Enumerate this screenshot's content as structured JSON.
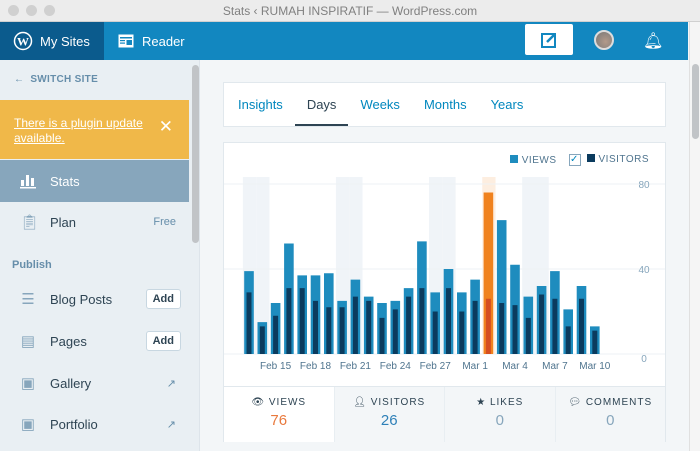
{
  "window": {
    "title": "Stats ‹ RUMAH INSPIRATIF — WordPress.com"
  },
  "masterbar": {
    "my_sites": "My Sites",
    "reader": "Reader",
    "icons": [
      "wordpress-icon",
      "reader-icon",
      "write-icon",
      "avatar",
      "notifications-icon"
    ]
  },
  "sidebar": {
    "switch_site": "SWITCH SITE",
    "notice": "There is a plugin update available.",
    "stats": "Stats",
    "plan": {
      "label": "Plan",
      "badge": "Free"
    },
    "publish_heading": "Publish",
    "items": [
      {
        "label": "Blog Posts",
        "action": "Add"
      },
      {
        "label": "Pages",
        "action": "Add"
      },
      {
        "label": "Gallery"
      },
      {
        "label": "Portfolio"
      }
    ]
  },
  "tabs": [
    "Insights",
    "Days",
    "Weeks",
    "Months",
    "Years"
  ],
  "active_tab": "Days",
  "legend": {
    "views": "VIEWS",
    "visitors": "VISITORS"
  },
  "colors": {
    "views": "#1e8cbe",
    "visitors": "#0b3b5e",
    "highlight": "#f0821e",
    "highlight_visitors": "#d54e21",
    "brand": "#1287c0"
  },
  "chart_data": {
    "type": "bar",
    "categories": [
      "Feb 13",
      "Feb 14",
      "Feb 15",
      "Feb 16",
      "Feb 17",
      "Feb 18",
      "Feb 19",
      "Feb 20",
      "Feb 21",
      "Feb 22",
      "Feb 23",
      "Feb 24",
      "Feb 25",
      "Feb 26",
      "Feb 27",
      "Feb 28",
      "Feb 29",
      "Mar 1",
      "Mar 2",
      "Mar 3",
      "Mar 4",
      "Mar 5",
      "Mar 6",
      "Mar 7",
      "Mar 8",
      "Mar 9",
      "Mar 10"
    ],
    "tick_labels": [
      "Feb 15",
      "Feb 18",
      "Feb 21",
      "Feb 24",
      "Feb 27",
      "Mar 1",
      "Mar 4",
      "Mar 7",
      "Mar 10"
    ],
    "series": [
      {
        "name": "VIEWS",
        "values": [
          39,
          15,
          24,
          52,
          37,
          37,
          38,
          25,
          35,
          27,
          24,
          25,
          31,
          53,
          29,
          40,
          29,
          35,
          76,
          63,
          42,
          27,
          32,
          39,
          21,
          32,
          13
        ]
      },
      {
        "name": "VISITORS",
        "values": [
          29,
          13,
          18,
          31,
          31,
          25,
          22,
          22,
          27,
          25,
          17,
          21,
          27,
          31,
          20,
          31,
          20,
          25,
          26,
          24,
          23,
          17,
          28,
          26,
          13,
          26,
          11
        ]
      }
    ],
    "highlighted": "Mar 2",
    "weekend_shaded": [
      "Feb 13",
      "Feb 14",
      "Feb 20",
      "Feb 21",
      "Feb 27",
      "Feb 28",
      "Mar 5",
      "Mar 6"
    ],
    "yticks": [
      0,
      40,
      80
    ],
    "ylim": [
      0,
      80
    ],
    "grid": true
  },
  "summary": [
    {
      "label": "VIEWS",
      "value": "76",
      "icon": "eye-icon"
    },
    {
      "label": "VISITORS",
      "value": "26",
      "icon": "person-icon"
    },
    {
      "label": "LIKES",
      "value": "0",
      "icon": "star-icon"
    },
    {
      "label": "COMMENTS",
      "value": "0",
      "icon": "comment-icon"
    }
  ]
}
